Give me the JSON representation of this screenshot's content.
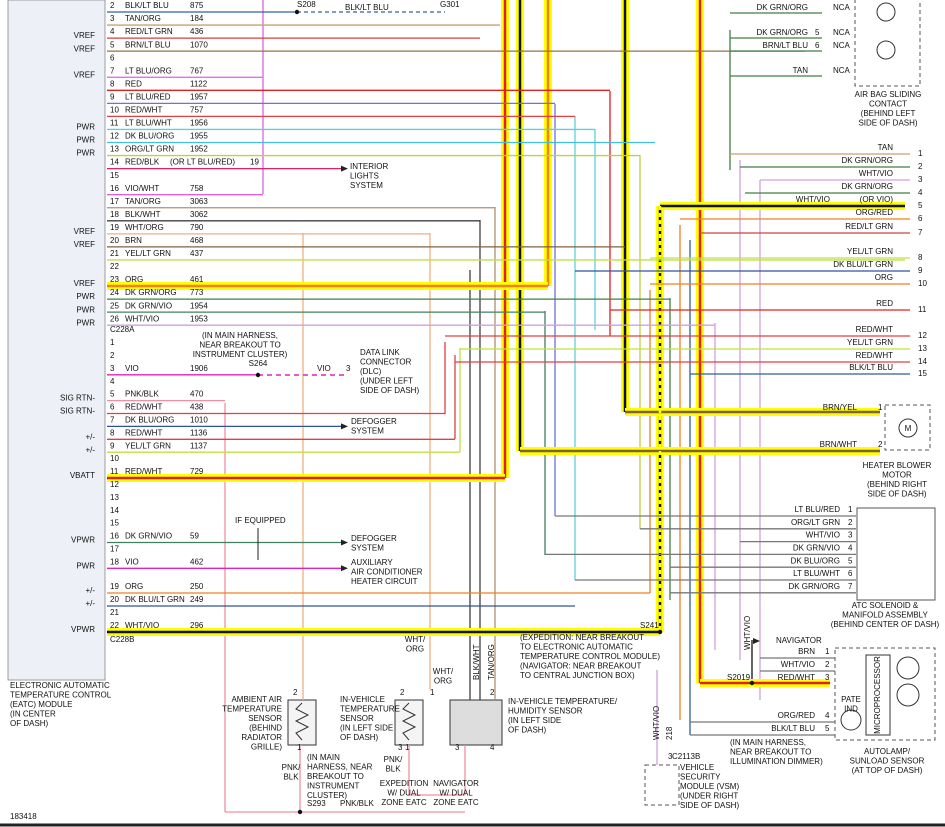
{
  "module": {
    "label": [
      "ELECTRONIC AUTOMATIC",
      "TEMPERATURE CONTROL",
      "(EATC) MODULE",
      "(IN CENTER",
      "OF DASH)"
    ],
    "c228a": "C228A",
    "c228b": "C228B",
    "rows_a": [
      {
        "pin": 2,
        "color": "BLK/LT BLU",
        "circuit": 875,
        "wire": "#3060a0"
      },
      {
        "pin": 3,
        "color": "TAN/ORG",
        "circuit": 184,
        "wire": "#c8a070"
      },
      {
        "pin": 4,
        "color": "RED/LT GRN",
        "circuit": 436,
        "signal": "VREF",
        "wire": "#d04040"
      },
      {
        "pin": 5,
        "color": "BRN/LT BLU",
        "circuit": 1070,
        "signal": "VREF",
        "wire": "#9a7040"
      },
      {
        "pin": 6
      },
      {
        "pin": 7,
        "color": "LT BLU/ORG",
        "circuit": 767,
        "signal": "VREF",
        "wire": "#e060e0"
      },
      {
        "pin": 8,
        "color": "RED",
        "circuit": 1122,
        "wire": "#e02020"
      },
      {
        "pin": 9,
        "color": "LT BLU/RED",
        "circuit": 1957,
        "wire": "#7070e0"
      },
      {
        "pin": 10,
        "color": "RED/WHT",
        "circuit": 757,
        "wire": "#e04040"
      },
      {
        "pin": 11,
        "color": "LT BLU/WHT",
        "circuit": 1956,
        "signal": "PWR",
        "wire": "#60d0e0"
      },
      {
        "pin": 12,
        "color": "DK BLU/ORG",
        "circuit": 1955,
        "signal": "PWR",
        "wire": "#40c0e0"
      },
      {
        "pin": 13,
        "color": "ORG/LT GRN",
        "circuit": 1952,
        "signal": "PWR",
        "wire": "#c0d040"
      },
      {
        "pin": 14,
        "color": "RED/BLK",
        "alt": "(OR LT BLU/RED)",
        "circuit": 19,
        "wire": "#e02060"
      },
      {
        "pin": 15
      },
      {
        "pin": 16,
        "color": "VIO/WHT",
        "circuit": 758,
        "wire": "#e060e0"
      },
      {
        "pin": 17,
        "color": "TAN/ORG",
        "circuit": 3063,
        "wire": "#b09070"
      },
      {
        "pin": 18,
        "color": "BLK/WHT",
        "circuit": 3062,
        "wire": "#404040"
      },
      {
        "pin": 19,
        "color": "WHT/ORG",
        "circuit": 790,
        "signal": "VREF",
        "wire": "#f0b080"
      },
      {
        "pin": 20,
        "color": "BRN",
        "circuit": 468,
        "signal": "VREF",
        "wire": "#806040"
      },
      {
        "pin": 21,
        "color": "YEL/LT GRN",
        "circuit": 437,
        "wire": "#c0e040"
      },
      {
        "pin": 22
      },
      {
        "pin": 23,
        "color": "ORG",
        "circuit": 461,
        "signal": "VREF",
        "wire": "#f08020"
      },
      {
        "pin": 24,
        "color": "DK GRN/ORG",
        "circuit": 773,
        "signal": "PWR",
        "wire": "#408040"
      },
      {
        "pin": 25,
        "color": "DK GRN/VIO",
        "circuit": 1954,
        "signal": "PWR",
        "wire": "#408060"
      },
      {
        "pin": 26,
        "color": "WHT/VIO",
        "circuit": 1953,
        "signal": "PWR",
        "wire": "#d0a0e0"
      }
    ],
    "rows_b": [
      {
        "pin": 1
      },
      {
        "pin": 2
      },
      {
        "pin": 3,
        "color": "VIO",
        "circuit": 1906,
        "wire": "#e020c0"
      },
      {
        "pin": 4
      },
      {
        "pin": 5,
        "color": "PNK/BLK",
        "circuit": 470,
        "signal": "SIG RTN-",
        "wire": "#f090a0"
      },
      {
        "pin": 6,
        "color": "RED/WHT",
        "circuit": 438,
        "signal": "SIG RTN-",
        "wire": "#e04040"
      },
      {
        "pin": 7,
        "color": "DK BLU/ORG",
        "circuit": 1010,
        "wire": "#3050a0"
      },
      {
        "pin": 8,
        "color": "RED/WHT",
        "circuit": 1136,
        "signal": "+/-",
        "wire": "#e04040"
      },
      {
        "pin": 9,
        "color": "YEL/LT GRN",
        "circuit": 1137,
        "signal": "+/-",
        "wire": "#c0e040"
      },
      {
        "pin": 10
      },
      {
        "pin": 11,
        "color": "RED/WHT",
        "circuit": 729,
        "signal": "VBATT",
        "wire": "#e02020"
      },
      {
        "pin": 12
      },
      {
        "pin": 13
      },
      {
        "pin": 14
      },
      {
        "pin": 15
      },
      {
        "pin": 16,
        "color": "DK GRN/VIO",
        "circuit": 59,
        "signal": "VPWR",
        "wire": "#408060"
      },
      {
        "pin": 17
      },
      {
        "pin": 18,
        "color": "VIO",
        "circuit": 462,
        "signal": "PWR",
        "wire": "#e020c0"
      },
      {
        "pin": 19,
        "color": "ORG",
        "circuit": 250,
        "signal": "+/-",
        "wire": "#f08020"
      },
      {
        "pin": 20,
        "color": "DK BLU/LT GRN",
        "circuit": 249,
        "signal": "+/-",
        "wire": "#3050a0"
      },
      {
        "pin": 21
      },
      {
        "pin": 22,
        "color": "WHT/VIO",
        "circuit": 296,
        "signal": "VPWR",
        "wire": "#111111"
      }
    ]
  },
  "right_pins": [
    {
      "pin": 1,
      "color": "TAN",
      "wire": "#c8a070"
    },
    {
      "pin": 2,
      "color": "DK GRN/ORG",
      "wire": "#408040"
    },
    {
      "pin": 3,
      "color": "WHT/VIO",
      "wire": "#d0a0e0"
    },
    {
      "pin": 4,
      "color": "DK GRN/ORG",
      "wire": "#408040"
    },
    {
      "pin": 5,
      "color": "WHT/VIO",
      "alt": "(OR VIO)",
      "wire": "#111111"
    },
    {
      "pin": 6,
      "color": "ORG/RED",
      "wire": "#f08020"
    },
    {
      "pin": 7,
      "color": "RED/LT GRN",
      "wire": "#d04040"
    },
    {
      "pin": 8,
      "color": "YEL/LT GRN",
      "wire": "#c0e040"
    },
    {
      "pin": 9,
      "color": "DK BLU/LT GRN",
      "wire": "#3050a0"
    },
    {
      "pin": 10,
      "color": "ORG",
      "wire": "#f08020"
    },
    {
      "pin": 11,
      "color": "RED",
      "wire": "#e02020"
    },
    {
      "pin": 12,
      "color": "RED/WHT",
      "wire": "#e04040"
    },
    {
      "pin": 13,
      "color": "YEL/LT GRN",
      "wire": "#c0e040"
    },
    {
      "pin": 14,
      "color": "RED/WHT",
      "wire": "#e04040"
    },
    {
      "pin": 15,
      "color": "BLK/LT BLU",
      "wire": "#306090"
    }
  ],
  "airbag": {
    "pins": [
      {
        "color": "DK GRN/ORG",
        "nca": "NCA"
      },
      {
        "color": "DK GRN/ORG",
        "pin": 5,
        "nca": "NCA"
      },
      {
        "color": "BRN/LT BLU",
        "pin": 6,
        "nca": "NCA"
      },
      {
        "color": "TAN",
        "nca": "NCA"
      }
    ],
    "label": [
      "AIR BAG SLIDING",
      "CONTACT",
      "(BEHIND LEFT",
      "SIDE OF DASH)"
    ]
  },
  "blower": {
    "pins": [
      {
        "color": "BRN/YEL",
        "pin": 1
      },
      {
        "color": "BRN/WHT",
        "pin": 2
      }
    ],
    "symbol": "M",
    "label": [
      "HEATER BLOWER",
      "MOTOR",
      "(BEHIND RIGHT",
      "SIDE OF DASH)"
    ]
  },
  "atc": {
    "pins": [
      {
        "color": "LT BLU/RED",
        "pin": 1
      },
      {
        "color": "ORG/LT GRN",
        "pin": 2
      },
      {
        "color": "WHT/VIO",
        "pin": 3
      },
      {
        "color": "DK GRN/VIO",
        "pin": 4
      },
      {
        "color": "DK BLU/ORG",
        "pin": 5
      },
      {
        "color": "LT BLU/WHT",
        "pin": 6
      },
      {
        "color": "DK GRN/ORG",
        "pin": 7
      }
    ],
    "label": [
      "ATC SOLENOID &",
      "MANIFOLD ASSEMBLY",
      "(BEHIND CENTER OF DASH)"
    ]
  },
  "autolamp": {
    "pins": [
      {
        "color": "BRN",
        "pin": 1
      },
      {
        "color": "WHT/VIO",
        "pin": 2
      },
      {
        "color": "RED/WHT",
        "pin": 3
      },
      {
        "color": "ORG/RED",
        "pin": 4
      },
      {
        "color": "BLK/LT BLU",
        "pin": 5
      }
    ],
    "processor": "MICROPROCESSOR",
    "pate": [
      "PATE",
      "IND"
    ],
    "label": [
      "AUTOLAMP/",
      "SUNLOAD SENSOR",
      "(AT TOP OF DASH)"
    ]
  },
  "notes": {
    "s208": "S208",
    "blk_lt_blu": "BLK/LT BLU",
    "g301": "G301",
    "interior": [
      "INTERIOR",
      "LIGHTS",
      "SYSTEM"
    ],
    "harness_ic": [
      "(IN MAIN HARNESS,",
      "NEAR BREAKOUT TO",
      "INSTRUMENT CLUSTER)"
    ],
    "s264": "S264",
    "dlc_color": "VIO",
    "dlc_pin": 3,
    "dlc": [
      "DATA LINK",
      "CONNECTOR",
      "(DLC)",
      "(UNDER LEFT",
      "SIDE OF DASH)"
    ],
    "defogger1": [
      "DEFOGGER",
      "SYSTEM"
    ],
    "if_equipped": "IF EQUIPPED",
    "defogger2": [
      "DEFOGGER",
      "SYSTEM"
    ],
    "aux": [
      "AUXILIARY",
      "AIR CONDITIONER",
      "HEATER CIRCUIT"
    ],
    "s241": "S241",
    "breakout": [
      "(EXPEDITION: NEAR BREAKOUT",
      "TO ELECTRONIC AUTOMATIC",
      "TEMPERATURE CONTROL MODULE)",
      "(NAVIGATOR: NEAR BREAKOUT",
      "TO CENTRAL JUNCTION BOX)"
    ],
    "ambient": [
      "AMBIENT AIR",
      "TEMPERATURE",
      "SENSOR",
      "(BEHIND",
      "RADIATOR",
      "GRILLE)"
    ],
    "invehicle": [
      "IN-VEHICLE",
      "TEMPERATURE",
      "SENSOR",
      "(IN LEFT SIDE",
      "OF DASH)"
    ],
    "wht_org1": [
      "WHT/",
      "ORG"
    ],
    "wht_org2": [
      "WHT/",
      "ORG"
    ],
    "blk_wht": "BLK/WHT",
    "tan_org": "TAN/ORG",
    "humidity": [
      "IN-VEHICLE TEMPERATURE/",
      "HUMIDITY SENSOR",
      "(IN LEFT SIDE",
      "OF DASH)"
    ],
    "pnk_blk1": [
      "PNK/",
      "BLK"
    ],
    "harness_ic2": [
      "(IN MAIN",
      "HARNESS, NEAR",
      "BREAKOUT TO",
      "INSTRUMENT",
      "CLUSTER)"
    ],
    "s293": "S293",
    "pnk_blk2": "PNK/BLK",
    "pnk_blk3": [
      "PNK/",
      "BLK"
    ],
    "expedition": [
      "EXPEDITION",
      "W/ DUAL",
      "ZONE EATC"
    ],
    "navigator_dz": [
      "NAVIGATOR",
      "W/ DUAL",
      "ZONE EATC"
    ],
    "wht_vio_218": "WHT/VIO",
    "c218": 218,
    "c2113b": "C2113B",
    "vsm": [
      "VEHICLE",
      "SECURITY",
      "MODULE (VSM)",
      "(UNDER RIGHT",
      "SIDE OF DASH)"
    ],
    "dimmer": [
      "(IN MAIN HARNESS,",
      "NEAR BREAKOUT TO",
      "ILLUMINATION DIMMER)"
    ],
    "wht_vio_v": "WHT/VIO",
    "navigator": "NAVIGATOR",
    "s2019": "S2019",
    "figure_id": 183418,
    "amb_p2": 2,
    "amb_p1": 1,
    "inv_p2": 2,
    "inv_p1": 1,
    "inv_p3": 3,
    "hum_p1": 1,
    "hum_p2": 2,
    "hum_p4": 4,
    "hum_p3": 3,
    "vsm_p": 3
  }
}
